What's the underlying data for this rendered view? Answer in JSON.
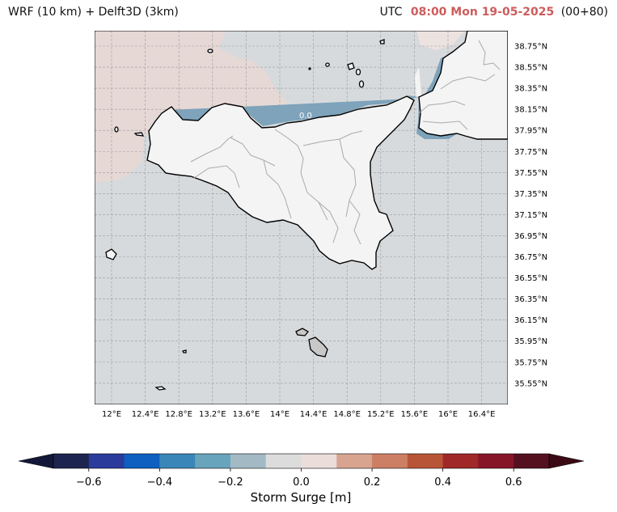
{
  "title": {
    "left": "WRF (10 km) + Delft3D (3km)",
    "utc_label": "UTC",
    "valid_time": "08:00 Mon 19-05-2025",
    "lead": "(00+80)"
  },
  "map": {
    "lon_ticks": [
      "12°E",
      "12.4°E",
      "12.8°E",
      "13.2°E",
      "13.6°E",
      "14°E",
      "14.4°E",
      "14.8°E",
      "15.2°E",
      "15.6°E",
      "16°E",
      "16.4°E"
    ],
    "lat_ticks": [
      "38.75°N",
      "38.55°N",
      "38.35°N",
      "38.15°N",
      "37.95°N",
      "37.75°N",
      "37.55°N",
      "37.35°N",
      "37.15°N",
      "36.95°N",
      "36.75°N",
      "36.55°N",
      "36.35°N",
      "36.15°N",
      "35.95°N",
      "35.75°N",
      "35.55°N"
    ],
    "contour_label": "0.0",
    "colors": {
      "sea": "#d7dadc",
      "positive_surge": "#e6d8d5",
      "land": "#f4f4f4",
      "coast_negative": "#7ea3bb"
    }
  },
  "colorbar": {
    "label": "Storm Surge [m]",
    "tick_labels": [
      "−0.6",
      "−0.4",
      "−0.2",
      "0.0",
      "0.2",
      "0.4",
      "0.6"
    ],
    "tick_values": [
      -0.6,
      -0.4,
      -0.2,
      0.0,
      0.2,
      0.4,
      0.6
    ],
    "range": [
      -0.7,
      0.7
    ],
    "colors": [
      "#1e2450",
      "#2a3b9c",
      "#0e5fbf",
      "#3a86b8",
      "#68a4bc",
      "#a3bac5",
      "#dcdcdc",
      "#eaddda",
      "#d8a490",
      "#cc7f65",
      "#b85538",
      "#a02828",
      "#861528",
      "#55101f"
    ],
    "under_color": "#141838",
    "over_color": "#3c0a14"
  }
}
